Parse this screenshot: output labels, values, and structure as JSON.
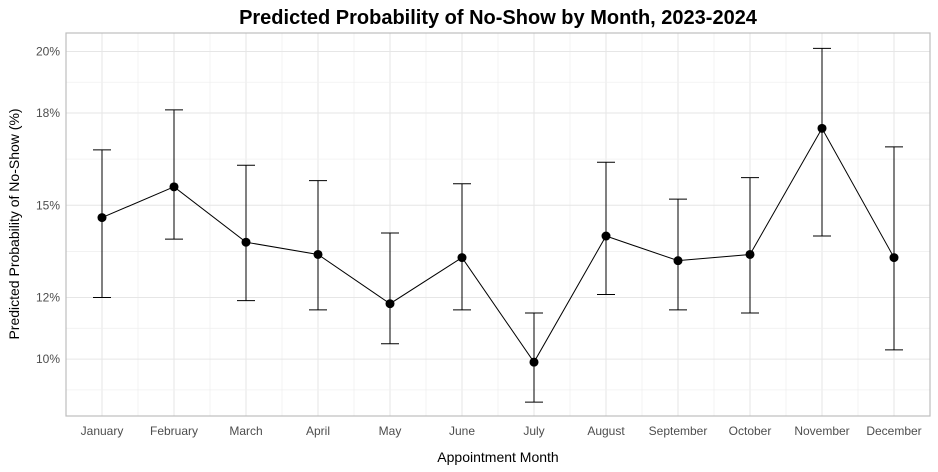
{
  "chart_data": {
    "type": "line",
    "title": "Predicted Probability of No-Show by Month, 2023-2024",
    "xlabel": "Appointment Month",
    "ylabel": "Predicted Probability of No-Show (%)",
    "categories": [
      "January",
      "February",
      "March",
      "April",
      "May",
      "June",
      "July",
      "August",
      "September",
      "October",
      "November",
      "December"
    ],
    "series": [
      {
        "values": [
          14.6,
          15.6,
          13.8,
          13.4,
          11.8,
          13.3,
          9.9,
          14.0,
          13.2,
          13.4,
          17.5,
          13.3
        ],
        "lower": [
          12.0,
          13.9,
          11.9,
          11.6,
          10.5,
          11.6,
          8.6,
          12.1,
          11.6,
          11.5,
          14.0,
          10.3
        ],
        "upper": [
          16.8,
          18.1,
          16.3,
          15.8,
          14.1,
          15.7,
          11.5,
          16.4,
          15.2,
          15.9,
          20.1,
          16.9
        ]
      }
    ],
    "ylim": [
      8.15,
      20.6
    ],
    "yticks": [
      10,
      12,
      15,
      18,
      20
    ],
    "ytick_labels": [
      "10%",
      "12%",
      "15%",
      "18%",
      "20%"
    ],
    "grid": true,
    "legend": "none",
    "colors": {
      "line": "#000000",
      "grid": "#e6e6e6",
      "axis_text": "#4d4d4d"
    }
  }
}
